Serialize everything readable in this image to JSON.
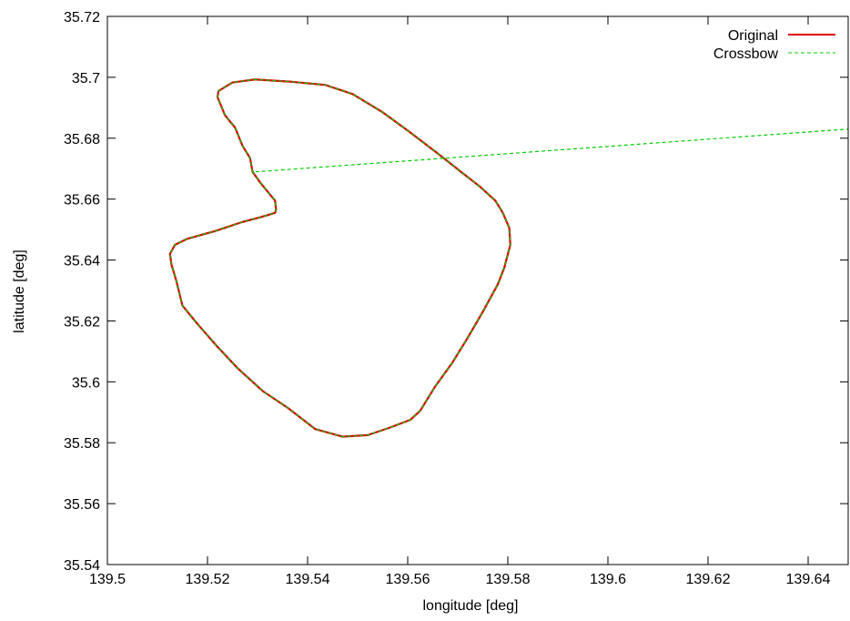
{
  "chart_data": {
    "type": "line",
    "title": "",
    "xlabel": "longitude [deg]",
    "ylabel": "latitude [deg]",
    "xlim": [
      139.5,
      139.648
    ],
    "ylim": [
      35.54,
      35.72
    ],
    "xticks": [
      139.5,
      139.52,
      139.54,
      139.56,
      139.58,
      139.6,
      139.62,
      139.64
    ],
    "xtick_labels": [
      "139.5",
      "139.52",
      "139.54",
      "139.56",
      "139.58",
      "139.6",
      "139.62",
      "139.64"
    ],
    "yticks": [
      35.54,
      35.56,
      35.58,
      35.6,
      35.62,
      35.64,
      35.66,
      35.68,
      35.7,
      35.72
    ],
    "ytick_labels": [
      "35.54",
      "35.56",
      "35.58",
      "35.6",
      "35.62",
      "35.64",
      "35.66",
      "35.68",
      "35.7",
      "35.72"
    ],
    "grid": false,
    "legend_position": "top-right",
    "series": [
      {
        "name": "Original",
        "color": "#e00000",
        "style": "solid",
        "points": [
          [
            139.529,
            35.669
          ],
          [
            139.5305,
            35.6655
          ],
          [
            139.5325,
            35.6615
          ],
          [
            139.5335,
            35.6595
          ],
          [
            139.5337,
            35.6565
          ],
          [
            139.5335,
            35.6555
          ],
          [
            139.5325,
            35.655
          ],
          [
            139.5305,
            35.654
          ],
          [
            139.527,
            35.6525
          ],
          [
            139.5215,
            35.6495
          ],
          [
            139.516,
            35.647
          ],
          [
            139.5135,
            35.645
          ],
          [
            139.5125,
            35.642
          ],
          [
            139.5128,
            35.6385
          ],
          [
            139.5138,
            35.633
          ],
          [
            139.515,
            35.625
          ],
          [
            139.518,
            35.619
          ],
          [
            139.522,
            35.6115
          ],
          [
            139.526,
            35.6045
          ],
          [
            139.531,
            35.597
          ],
          [
            139.536,
            35.5915
          ],
          [
            139.5415,
            35.5845
          ],
          [
            139.547,
            35.582
          ],
          [
            139.552,
            35.5825
          ],
          [
            139.5565,
            35.585
          ],
          [
            139.5605,
            35.5875
          ],
          [
            139.5625,
            35.5905
          ],
          [
            139.5655,
            35.5985
          ],
          [
            139.569,
            35.6065
          ],
          [
            139.572,
            35.6145
          ],
          [
            139.575,
            35.623
          ],
          [
            139.578,
            35.632
          ],
          [
            139.5793,
            35.6375
          ],
          [
            139.5805,
            35.645
          ],
          [
            139.5803,
            35.6505
          ],
          [
            139.579,
            35.6555
          ],
          [
            139.5775,
            35.6595
          ],
          [
            139.5745,
            35.664
          ],
          [
            139.571,
            35.6685
          ],
          [
            139.566,
            35.675
          ],
          [
            139.56,
            35.6825
          ],
          [
            139.555,
            35.6885
          ],
          [
            139.549,
            35.6945
          ],
          [
            139.5435,
            35.6975
          ],
          [
            139.537,
            35.6985
          ],
          [
            139.5295,
            35.6993
          ],
          [
            139.525,
            35.6983
          ],
          [
            139.5222,
            35.6955
          ],
          [
            139.522,
            35.6935
          ],
          [
            139.5235,
            35.6875
          ],
          [
            139.5255,
            35.6835
          ],
          [
            139.527,
            35.6775
          ],
          [
            139.5285,
            35.6735
          ],
          [
            139.529,
            35.669
          ]
        ]
      },
      {
        "name": "Crossbow",
        "color": "#00cc00",
        "style": "dashed",
        "points": [
          [
            139.529,
            35.669
          ],
          [
            139.5305,
            35.6655
          ],
          [
            139.5325,
            35.6615
          ],
          [
            139.5335,
            35.6595
          ],
          [
            139.5337,
            35.6565
          ],
          [
            139.5335,
            35.6555
          ],
          [
            139.5325,
            35.655
          ],
          [
            139.5305,
            35.654
          ],
          [
            139.527,
            35.6525
          ],
          [
            139.5215,
            35.6495
          ],
          [
            139.516,
            35.647
          ],
          [
            139.5135,
            35.645
          ],
          [
            139.5125,
            35.642
          ],
          [
            139.5128,
            35.6385
          ],
          [
            139.5138,
            35.633
          ],
          [
            139.515,
            35.625
          ],
          [
            139.518,
            35.619
          ],
          [
            139.522,
            35.6115
          ],
          [
            139.526,
            35.6045
          ],
          [
            139.531,
            35.597
          ],
          [
            139.536,
            35.5915
          ],
          [
            139.5415,
            35.5845
          ],
          [
            139.547,
            35.582
          ],
          [
            139.552,
            35.5825
          ],
          [
            139.5565,
            35.585
          ],
          [
            139.5605,
            35.5875
          ],
          [
            139.5625,
            35.5905
          ],
          [
            139.5655,
            35.5985
          ],
          [
            139.569,
            35.6065
          ],
          [
            139.572,
            35.6145
          ],
          [
            139.575,
            35.623
          ],
          [
            139.578,
            35.632
          ],
          [
            139.5793,
            35.6375
          ],
          [
            139.5805,
            35.645
          ],
          [
            139.5803,
            35.6505
          ],
          [
            139.579,
            35.6555
          ],
          [
            139.5775,
            35.6595
          ],
          [
            139.5745,
            35.664
          ],
          [
            139.571,
            35.6685
          ],
          [
            139.566,
            35.675
          ],
          [
            139.56,
            35.6825
          ],
          [
            139.555,
            35.6885
          ],
          [
            139.549,
            35.6945
          ],
          [
            139.5435,
            35.6975
          ],
          [
            139.537,
            35.6985
          ],
          [
            139.5295,
            35.6993
          ],
          [
            139.525,
            35.6983
          ],
          [
            139.5222,
            35.6955
          ],
          [
            139.522,
            35.6935
          ],
          [
            139.5235,
            35.6875
          ],
          [
            139.5255,
            35.6835
          ],
          [
            139.527,
            35.6775
          ],
          [
            139.5285,
            35.6735
          ],
          [
            139.529,
            35.669
          ],
          [
            139.53,
            35.669
          ],
          [
            139.648,
            35.683
          ]
        ]
      }
    ]
  }
}
